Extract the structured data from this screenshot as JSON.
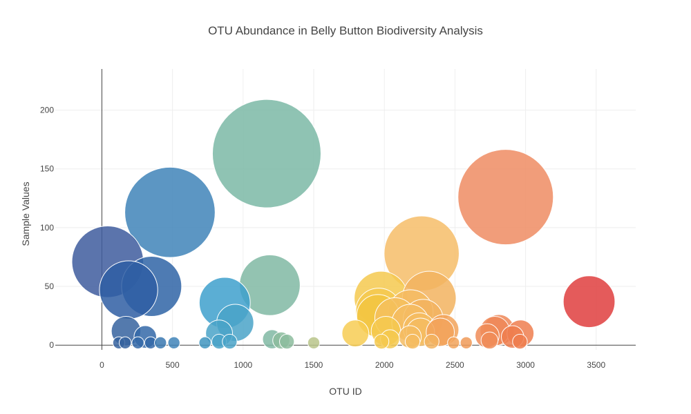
{
  "chart_data": {
    "type": "scatter",
    "subtype": "bubble",
    "title": "OTU Abundance in Belly Button Biodiversity Analysis",
    "xlabel": "OTU ID",
    "ylabel": "Sample Values",
    "xlim": [
      -330,
      3780
    ],
    "ylim": [
      -4,
      235
    ],
    "xticks": [
      0,
      500,
      1000,
      1500,
      2000,
      2500,
      3000,
      3500
    ],
    "yticks": [
      0,
      50,
      100,
      150,
      200
    ],
    "colorscale": "Earth-like (blue → green → yellow → orange → red by OTU ID)",
    "size_note": "marker area proportional to sample value",
    "points": [
      {
        "x": 41,
        "y": 71,
        "color": "#3e5c9e"
      },
      {
        "x": 189,
        "y": 47,
        "color": "#2f5ea3"
      },
      {
        "x": 352,
        "y": 50,
        "color": "#2f64a6"
      },
      {
        "x": 482,
        "y": 113,
        "color": "#3f84b8"
      },
      {
        "x": 171,
        "y": 12,
        "color": "#36639f"
      },
      {
        "x": 307,
        "y": 7,
        "color": "#3469a8"
      },
      {
        "x": 870,
        "y": 36,
        "color": "#3ea0cc"
      },
      {
        "x": 944,
        "y": 19,
        "color": "#4aa3c8"
      },
      {
        "x": 830,
        "y": 10,
        "color": "#4aa3c8"
      },
      {
        "x": 1167,
        "y": 163,
        "color": "#7bb8a6"
      },
      {
        "x": 1189,
        "y": 51,
        "color": "#80b8a3"
      },
      {
        "x": 1795,
        "y": 10,
        "color": "#f7cc54"
      },
      {
        "x": 1977,
        "y": 40,
        "color": "#f4c94f"
      },
      {
        "x": 1960,
        "y": 29,
        "color": "#f4c94f"
      },
      {
        "x": 1955,
        "y": 25,
        "color": "#f2c641"
      },
      {
        "x": 2011,
        "y": 12,
        "color": "#f4c94f"
      },
      {
        "x": 2077,
        "y": 23,
        "color": "#f4bf5e"
      },
      {
        "x": 2186,
        "y": 28,
        "color": "#f5bc61"
      },
      {
        "x": 2184,
        "y": 19,
        "color": "#f5bc61"
      },
      {
        "x": 2247,
        "y": 14,
        "color": "#f5bc61"
      },
      {
        "x": 2256,
        "y": 11,
        "color": "#f5bc61"
      },
      {
        "x": 2264,
        "y": 78,
        "color": "#f6bd68"
      },
      {
        "x": 2275,
        "y": 22,
        "color": "#f2b35f"
      },
      {
        "x": 2318,
        "y": 40,
        "color": "#f2b35f"
      },
      {
        "x": 2396,
        "y": 11,
        "color": "#f2a35a"
      },
      {
        "x": 2419,
        "y": 13,
        "color": "#f2a35a"
      },
      {
        "x": 2728,
        "y": 8,
        "color": "#f08c58"
      },
      {
        "x": 2782,
        "y": 12,
        "color": "#ef8757"
      },
      {
        "x": 2811,
        "y": 13,
        "color": "#ef8757"
      },
      {
        "x": 2859,
        "y": 126,
        "color": "#ef8c63"
      },
      {
        "x": 2908,
        "y": 7,
        "color": "#ee7e4f"
      },
      {
        "x": 2964,
        "y": 10,
        "color": "#ee7e4f"
      },
      {
        "x": 3450,
        "y": 37,
        "color": "#df3e3e"
      },
      {
        "x": 120,
        "y": 2,
        "color": "#36639f"
      },
      {
        "x": 165,
        "y": 2,
        "color": "#36639f"
      },
      {
        "x": 255,
        "y": 2,
        "color": "#3469a8"
      },
      {
        "x": 345,
        "y": 2,
        "color": "#3469a8"
      },
      {
        "x": 415,
        "y": 2,
        "color": "#3a78b0"
      },
      {
        "x": 510,
        "y": 2,
        "color": "#3f84b8"
      },
      {
        "x": 730,
        "y": 2,
        "color": "#3f95c0"
      },
      {
        "x": 830,
        "y": 3,
        "color": "#4aa3c8"
      },
      {
        "x": 905,
        "y": 3,
        "color": "#4aa3c8"
      },
      {
        "x": 1205,
        "y": 5,
        "color": "#80b8a3"
      },
      {
        "x": 1270,
        "y": 4,
        "color": "#8cbc9e"
      },
      {
        "x": 1310,
        "y": 3,
        "color": "#8cbc9e"
      },
      {
        "x": 1500,
        "y": 2,
        "color": "#b9c48a"
      },
      {
        "x": 1980,
        "y": 3,
        "color": "#f4c94f"
      },
      {
        "x": 2040,
        "y": 5,
        "color": "#f4c94f"
      },
      {
        "x": 2182,
        "y": 7,
        "color": "#f5bc61"
      },
      {
        "x": 2200,
        "y": 3,
        "color": "#f5bc61"
      },
      {
        "x": 2335,
        "y": 3,
        "color": "#f2b35f"
      },
      {
        "x": 2490,
        "y": 2,
        "color": "#f2a35a"
      },
      {
        "x": 2580,
        "y": 2,
        "color": "#f09a58"
      },
      {
        "x": 2745,
        "y": 4,
        "color": "#f08c58"
      },
      {
        "x": 2960,
        "y": 3,
        "color": "#ee7e4f"
      }
    ]
  }
}
